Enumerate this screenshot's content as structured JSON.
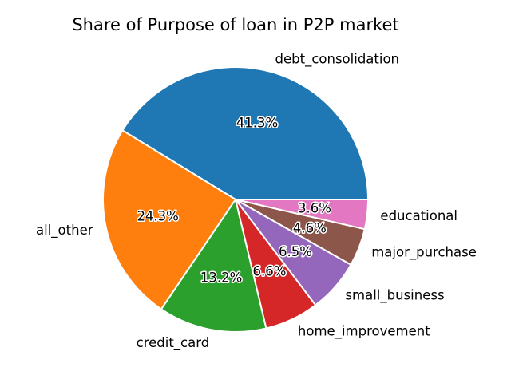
{
  "chart_data": {
    "type": "pie",
    "title": "Share of Purpose of loan in P2P market",
    "slices": [
      {
        "label": "debt_consolidation",
        "value": 41.3,
        "pct_label": "41.3%",
        "color": "#1f77b4"
      },
      {
        "label": "all_other",
        "value": 24.3,
        "pct_label": "24.3%",
        "color": "#ff7f0e"
      },
      {
        "label": "credit_card",
        "value": 13.2,
        "pct_label": "13.2%",
        "color": "#2ca02c"
      },
      {
        "label": "home_improvement",
        "value": 6.6,
        "pct_label": "6.6%",
        "color": "#d62728"
      },
      {
        "label": "small_business",
        "value": 6.5,
        "pct_label": "6.5%",
        "color": "#9467bd"
      },
      {
        "label": "major_purchase",
        "value": 4.6,
        "pct_label": "4.6%",
        "color": "#8c564b"
      },
      {
        "label": "educational",
        "value": 3.6,
        "pct_label": "3.6%",
        "color": "#e377c2"
      }
    ],
    "legend": "none"
  }
}
